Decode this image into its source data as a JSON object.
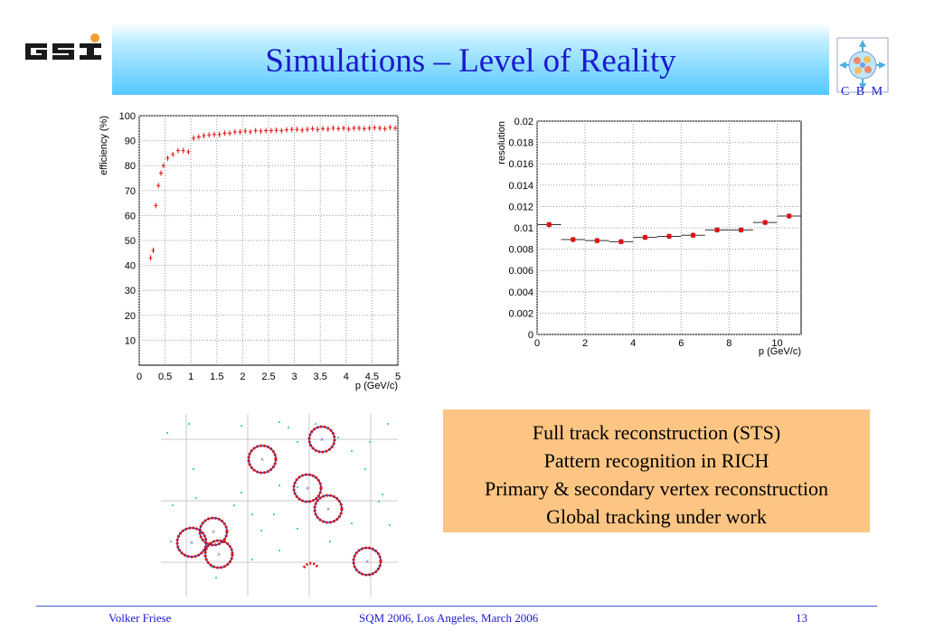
{
  "slide": {
    "title": "Simulations – Level of Reality",
    "cbm_label": "C B M"
  },
  "info_box": {
    "lines": [
      "Full track reconstruction (STS)",
      "Pattern recognition in RICH",
      "Primary & secondary vertex reconstruction",
      "Global tracking under work"
    ]
  },
  "footer": {
    "author": "Volker Friese",
    "event": "SQM 2006, Los Angeles, March 2006",
    "page": "13"
  },
  "colors": {
    "title": "#1a1acc",
    "marker": "#e01010",
    "info_box": "#fdc583"
  },
  "chart_data": [
    {
      "type": "scatter",
      "title": "",
      "xlabel": "p (GeV/c)",
      "ylabel": "efficiency (%)",
      "xlim": [
        0,
        5
      ],
      "ylim": [
        0,
        100
      ],
      "grid": true,
      "x_ticks": [
        "0",
        "0.5",
        "1",
        "1.5",
        "2",
        "2.5",
        "3",
        "3.5",
        "4",
        "4.5",
        "5"
      ],
      "y_ticks": [
        "10",
        "20",
        "30",
        "40",
        "50",
        "60",
        "70",
        "80",
        "90",
        "100"
      ],
      "x": [
        0.22,
        0.27,
        0.32,
        0.37,
        0.42,
        0.47,
        0.55,
        0.65,
        0.75,
        0.85,
        0.95,
        1.05,
        1.15,
        1.25,
        1.35,
        1.45,
        1.55,
        1.65,
        1.75,
        1.85,
        1.95,
        2.05,
        2.15,
        2.25,
        2.35,
        2.45,
        2.55,
        2.65,
        2.75,
        2.85,
        2.95,
        3.05,
        3.15,
        3.25,
        3.35,
        3.45,
        3.55,
        3.65,
        3.75,
        3.85,
        3.95,
        4.05,
        4.15,
        4.25,
        4.35,
        4.45,
        4.55,
        4.65,
        4.75,
        4.85,
        4.95
      ],
      "y": [
        43,
        46,
        64,
        72,
        77,
        80,
        83,
        84.5,
        86,
        86,
        85.5,
        91,
        91.5,
        92,
        92.3,
        92.5,
        92.5,
        93,
        93,
        93.5,
        93.5,
        93.8,
        93.5,
        94,
        93.8,
        94,
        94,
        94.2,
        94,
        94.3,
        94.5,
        94.5,
        94.2,
        94.5,
        94.8,
        94.5,
        94.8,
        94.6,
        95,
        94.8,
        95,
        94.6,
        95,
        95,
        94.8,
        95,
        95.2,
        95,
        94.8,
        95.3,
        95
      ]
    },
    {
      "type": "scatter",
      "title": "",
      "xlabel": "p (GeV/c)",
      "ylabel": "resolution",
      "xlim": [
        0,
        11
      ],
      "ylim": [
        0,
        0.02
      ],
      "grid": true,
      "x_ticks": [
        "0",
        "2",
        "4",
        "6",
        "8",
        "10"
      ],
      "y_ticks": [
        "0",
        "0.002",
        "0.004",
        "0.006",
        "0.008",
        "0.01",
        "0.012",
        "0.014",
        "0.016",
        "0.018",
        "0.02"
      ],
      "x": [
        0.5,
        1.5,
        2.5,
        3.5,
        4.5,
        5.5,
        6.5,
        7.5,
        8.5,
        9.5,
        10.5
      ],
      "y": [
        0.0103,
        0.0089,
        0.0088,
        0.0087,
        0.0091,
        0.0092,
        0.0093,
        0.0098,
        0.0098,
        0.0105,
        0.0111
      ],
      "x_error": 0.5
    }
  ]
}
